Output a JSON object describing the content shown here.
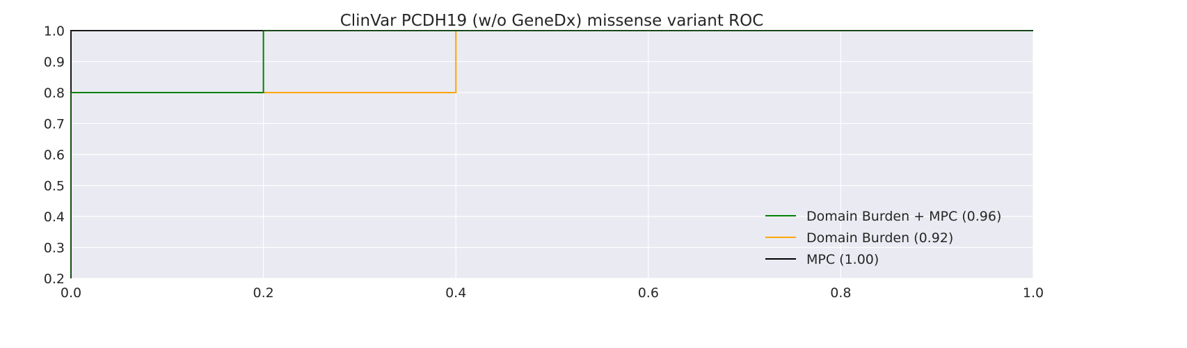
{
  "chart_data": {
    "type": "line",
    "title": "ClinVar PCDH19 (w/o GeneDx) missense variant ROC",
    "xlabel": "",
    "ylabel": "",
    "xlim": [
      0.0,
      1.0
    ],
    "ylim": [
      0.2,
      1.0
    ],
    "x_ticks": [
      "0.0",
      "0.2",
      "0.4",
      "0.6",
      "0.8",
      "1.0"
    ],
    "y_ticks": [
      "0.2",
      "0.3",
      "0.4",
      "0.5",
      "0.6",
      "0.7",
      "0.8",
      "0.9",
      "1.0"
    ],
    "grid": true,
    "legend_position": "lower-right",
    "series": [
      {
        "name": "Domain Burden + MPC (0.96)",
        "color": "#008000",
        "x": [
          0.0,
          0.0,
          0.2,
          0.2,
          1.0
        ],
        "y": [
          0.0,
          0.8,
          0.8,
          1.0,
          1.0
        ]
      },
      {
        "name": "Domain Burden (0.92)",
        "color": "#FFA500",
        "x": [
          0.0,
          0.0,
          0.4,
          0.4,
          1.0
        ],
        "y": [
          0.0,
          0.8,
          0.8,
          1.0,
          1.0
        ]
      },
      {
        "name": "MPC (1.00)",
        "color": "#000000",
        "x": [
          0.0,
          0.0,
          1.0
        ],
        "y": [
          0.0,
          1.0,
          1.0
        ]
      }
    ]
  }
}
